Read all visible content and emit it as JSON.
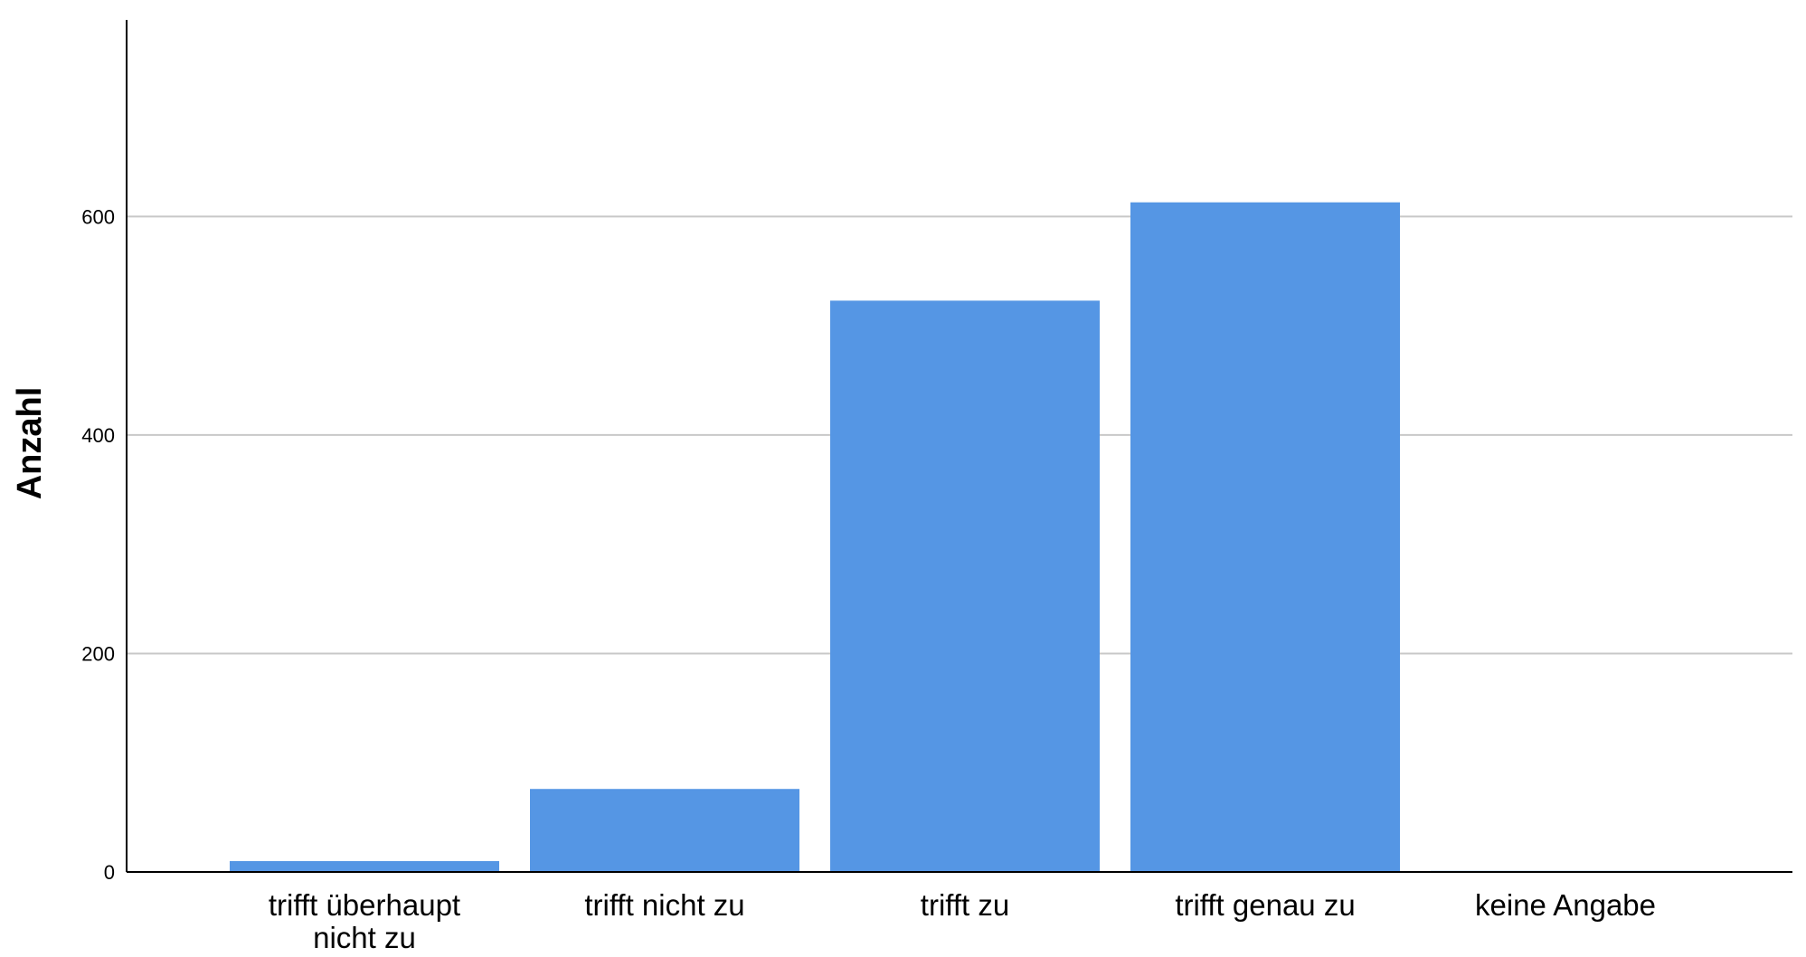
{
  "chart_data": {
    "type": "bar",
    "categories": [
      [
        "trifft überhaupt",
        "nicht zu"
      ],
      [
        "trifft nicht zu"
      ],
      [
        "trifft zu"
      ],
      [
        "trifft genau zu"
      ],
      [
        "keine Angabe"
      ]
    ],
    "values": [
      10,
      76,
      523,
      613,
      1
    ],
    "xlabel": "",
    "ylabel": "Anzahl",
    "ylim": [
      0,
      780
    ],
    "yticks": [
      0,
      200,
      400,
      600
    ],
    "grid": true,
    "bar_color": "#5596e4",
    "grid_color": "#c8c8c8",
    "axis_color": "#000000"
  }
}
